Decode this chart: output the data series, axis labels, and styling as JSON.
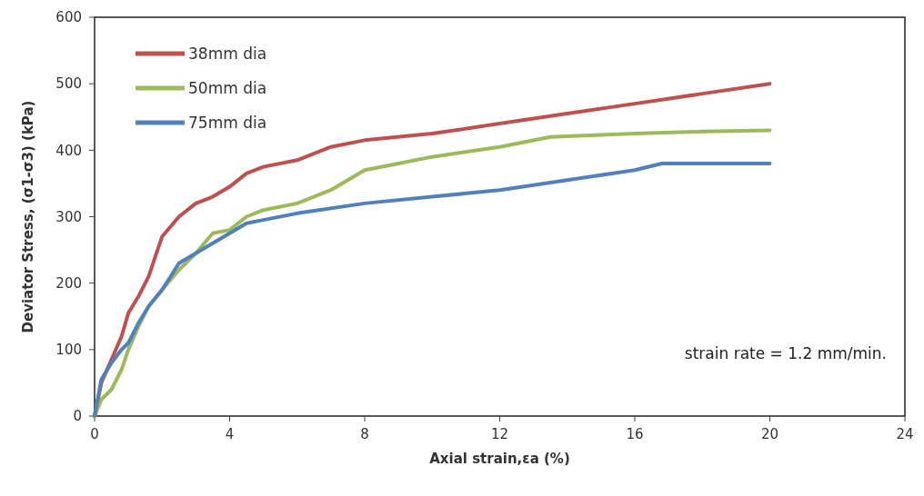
{
  "chart_data": {
    "type": "line",
    "xlabel": "Axial strain,εa  (%)",
    "ylabel": "Deviator Stress, (σ1-σ3) (kPa)",
    "xlim": [
      0,
      24
    ],
    "xticks": [
      0,
      4,
      8,
      12,
      16,
      20,
      24
    ],
    "ylim": [
      0,
      600
    ],
    "yticks": [
      0,
      100,
      200,
      300,
      400,
      500,
      600
    ],
    "grid": false,
    "legend": "top left",
    "marker": "none",
    "line_style": "solid",
    "annotations": [
      "strain rate = 1.2 mm/min."
    ],
    "series": [
      {
        "name": "38mm dia",
        "color": "#c0504d",
        "x": [
          0,
          0.2,
          0.5,
          0.8,
          1,
          1.3,
          1.6,
          2,
          2.5,
          3,
          3.5,
          4,
          4.5,
          5,
          6,
          7,
          8,
          10,
          12,
          14,
          16,
          18,
          20
        ],
        "values": [
          0,
          50,
          85,
          120,
          155,
          180,
          210,
          270,
          300,
          320,
          330,
          345,
          365,
          375,
          385,
          405,
          415,
          425,
          440,
          455,
          470,
          485,
          500
        ]
      },
      {
        "name": "50mm dia",
        "color": "#9bbb59",
        "x": [
          0,
          0.2,
          0.5,
          0.8,
          1,
          1.3,
          1.6,
          2,
          2.5,
          3,
          3.5,
          4,
          4.5,
          5,
          6,
          7,
          8,
          9,
          10,
          12,
          13.5,
          16,
          18,
          20
        ],
        "values": [
          0,
          25,
          40,
          70,
          100,
          135,
          165,
          190,
          220,
          245,
          275,
          280,
          300,
          310,
          320,
          340,
          370,
          380,
          390,
          405,
          420,
          425,
          428,
          430
        ]
      },
      {
        "name": "75mm dia",
        "color": "#4f81bd",
        "x": [
          0,
          0.2,
          0.5,
          0.8,
          1,
          1.3,
          1.6,
          2,
          2.5,
          3,
          3.5,
          4,
          4.5,
          5,
          6,
          8,
          10,
          12,
          14,
          16,
          16.8,
          18,
          20
        ],
        "values": [
          0,
          55,
          80,
          100,
          110,
          140,
          165,
          190,
          230,
          245,
          260,
          275,
          290,
          295,
          305,
          320,
          330,
          340,
          355,
          370,
          380,
          380,
          380
        ]
      }
    ]
  }
}
